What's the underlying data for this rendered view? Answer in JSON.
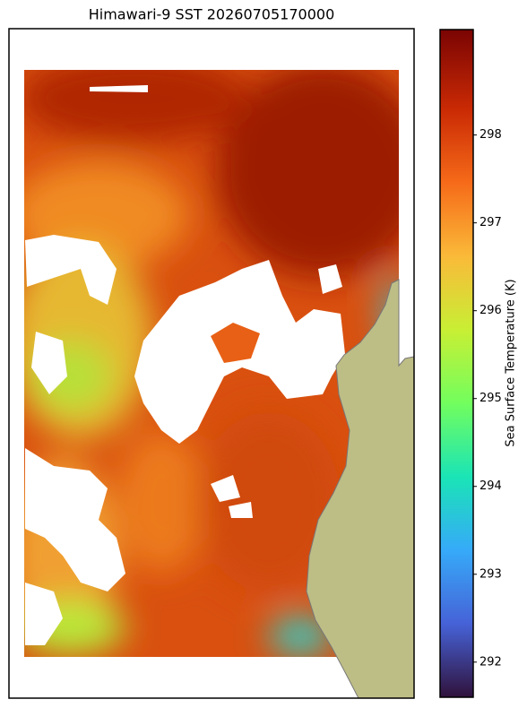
{
  "title": "Himawari-9 SST 20260705170000",
  "colorbar": {
    "label": "Sea Surface Temperature (K)",
    "range": [
      291.6,
      299.2
    ],
    "ticks": [
      292,
      293,
      294,
      295,
      296,
      297,
      298
    ]
  }
}
